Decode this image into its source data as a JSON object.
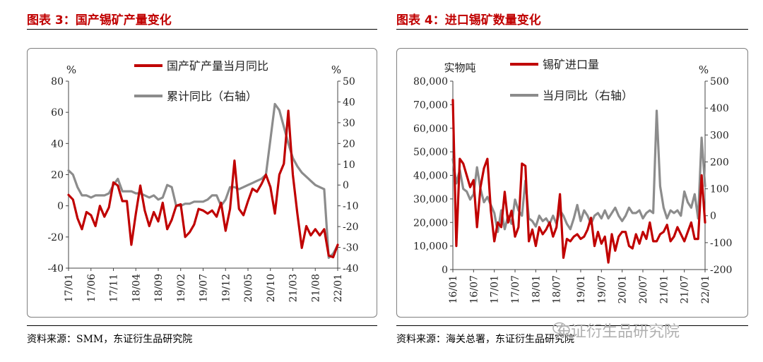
{
  "colors": {
    "red": "#c00000",
    "gray": "#8c8c8c",
    "title": "#c00000"
  },
  "watermark": {
    "text": "东证衍生品研究院",
    "icon": "wechat-icon"
  },
  "chart_data": [
    {
      "type": "line",
      "title": "图表 3：国产锡矿产量变化",
      "source": "资料来源：SMM，东证衍生品研究院",
      "ylabel": "%",
      "y2label": "%",
      "ylim": [
        -40,
        80
      ],
      "y2lim": [
        -40,
        50
      ],
      "yticks": [
        -40,
        -20,
        0,
        20,
        40,
        60,
        80
      ],
      "y2ticks": [
        -40,
        -30,
        -20,
        -10,
        0,
        10,
        20,
        30,
        40,
        50
      ],
      "xtick_labels": [
        "17/01",
        "17/06",
        "17/11",
        "18/04",
        "18/09",
        "19/02",
        "19/07",
        "19/12",
        "20/05",
        "20/10",
        "21/03",
        "21/08",
        "22/01"
      ],
      "n_points": 61,
      "legend": [
        "国产矿产量当月同比",
        "累计同比（右轴）"
      ],
      "series": [
        {
          "name": "国产矿产量当月同比",
          "axis": "left",
          "color": "#c00000",
          "values": [
            7,
            4,
            -8,
            -15,
            -4,
            -6,
            -13,
            0,
            -7,
            -1,
            15,
            13,
            3,
            3,
            -25,
            -5,
            13,
            -3,
            -13,
            -4,
            -10,
            2,
            -15,
            -9,
            0,
            1,
            -20,
            -17,
            -12,
            -2,
            -3,
            -5,
            -3,
            -7,
            2,
            -16,
            -2,
            29,
            -2,
            -6,
            3,
            11,
            9,
            14,
            20,
            12,
            -5,
            20,
            27,
            61,
            20,
            -5,
            -27,
            -13,
            -19,
            -15,
            -19,
            -15,
            -32,
            -33,
            -25
          ]
        },
        {
          "name": "累计同比（右轴）",
          "axis": "right",
          "color": "#8c8c8c",
          "values": [
            7,
            5,
            -1,
            -5,
            -5,
            -6,
            -5,
            -5,
            -5,
            -4,
            0,
            3,
            -3,
            -3,
            -3,
            -4,
            -4,
            -5,
            -6,
            -5,
            -7,
            -6,
            0,
            -1,
            -10,
            -10,
            -9,
            -9,
            -8,
            -8,
            -8,
            -7,
            -5,
            -5,
            -10,
            -7,
            -1,
            -1,
            -2,
            -1,
            0,
            1,
            2,
            3,
            5,
            22,
            39,
            36,
            28,
            20,
            13,
            9,
            6,
            4,
            2,
            0,
            -1,
            -2,
            -35,
            -33,
            -29
          ]
        }
      ]
    },
    {
      "type": "line",
      "title": "图表 4：进口锡矿数量变化",
      "source": "资料来源：海关总署，东证衍生品研究院",
      "ylabel": "实物吨",
      "y2label": "%",
      "ylim": [
        0,
        80000
      ],
      "y2lim": [
        -200,
        500
      ],
      "yticks": [
        0,
        10000,
        20000,
        30000,
        40000,
        50000,
        60000,
        70000,
        80000
      ],
      "ytick_labels": [
        "0",
        "10,000",
        "20,000",
        "30,000",
        "40,000",
        "50,000",
        "60,000",
        "70,000",
        "80,000"
      ],
      "y2ticks": [
        -200,
        -100,
        0,
        100,
        200,
        300,
        400,
        500
      ],
      "xtick_labels": [
        "16/01",
        "16/07",
        "17/01",
        "17/07",
        "18/01",
        "18/07",
        "19/01",
        "19/07",
        "20/01",
        "20/07",
        "21/01",
        "21/07",
        "22/01"
      ],
      "n_points": 74,
      "legend": [
        "锡矿进口量",
        "当月同比（右轴）"
      ],
      "series": [
        {
          "name": "锡矿进口量",
          "axis": "left",
          "color": "#c00000",
          "values": [
            72000,
            10000,
            47000,
            45000,
            40000,
            35000,
            38000,
            18000,
            35000,
            43000,
            47000,
            25000,
            12000,
            20000,
            18000,
            33000,
            20000,
            25000,
            14000,
            18000,
            45000,
            44000,
            12000,
            17000,
            10000,
            18000,
            15000,
            17000,
            20000,
            14000,
            18000,
            32000,
            5000,
            13000,
            12000,
            14000,
            15000,
            13000,
            14000,
            17000,
            22000,
            10000,
            16000,
            11000,
            14000,
            3000,
            15000,
            8000,
            14000,
            16000,
            16000,
            10000,
            9000,
            15000,
            11000,
            16000,
            13000,
            20000,
            12000,
            12000,
            15000,
            16000,
            19000,
            12000,
            14000,
            18000,
            15000,
            12000,
            16000,
            20000,
            13000,
            13000,
            40000,
            20000
          ]
        },
        {
          "name": "当月同比（右轴）",
          "axis": "right",
          "color": "#8c8c8c",
          "values": [
            210,
            120,
            170,
            100,
            90,
            60,
            80,
            180,
            100,
            50,
            70,
            40,
            10,
            -60,
            20,
            -50,
            0,
            -30,
            60,
            20,
            0,
            130,
            -10,
            -20,
            -40,
            0,
            -20,
            -10,
            -30,
            0,
            -30,
            20,
            0,
            -30,
            -50,
            -10,
            40,
            -20,
            20,
            0,
            -30,
            0,
            10,
            -10,
            20,
            -10,
            10,
            30,
            0,
            -20,
            0,
            30,
            10,
            10,
            20,
            -10,
            10,
            20,
            10,
            390,
            110,
            30,
            -10,
            20,
            10,
            20,
            0,
            90,
            50,
            30,
            80,
            -10,
            290,
            110
          ]
        }
      ]
    }
  ]
}
